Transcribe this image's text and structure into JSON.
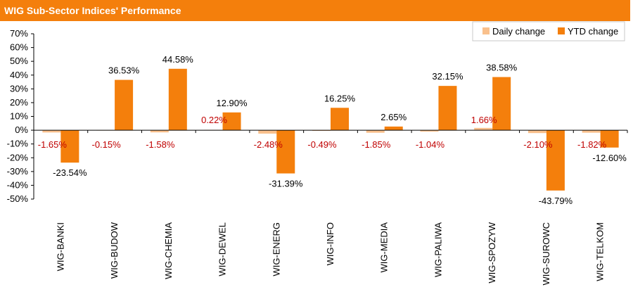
{
  "header": {
    "title": "WIG Sub-Sector Indices' Performance"
  },
  "colors": {
    "header_bg": "#f47f0c",
    "daily": "#f9c08c",
    "ytd": "#f47f0c",
    "daily_label": "#c00000",
    "axis": "#000000"
  },
  "chart_data": {
    "type": "bar",
    "title": "WIG Sub-Sector Indices' Performance",
    "categories": [
      "WIG-BANKI",
      "WIG-BUDOW",
      "WIG-CHEMIA",
      "WIG-DEWEL",
      "WIG-ENERG",
      "WIG-INFO",
      "WIG-MEDIA",
      "WIG-PALIWA",
      "WIG-SPOZYW",
      "WIG-SUROWC",
      "WIG-TELKOM"
    ],
    "series": [
      {
        "name": "Daily change",
        "values": [
          -1.65,
          -0.15,
          -1.58,
          0.22,
          -2.48,
          -0.49,
          -1.85,
          -1.04,
          1.66,
          -2.1,
          -1.82
        ],
        "labels": [
          "-1.65%",
          "-0.15%",
          "-1.58%",
          "0.22%",
          "-2.48%",
          "-0.49%",
          "-1.85%",
          "-1.04%",
          "1.66%",
          "-2.10%",
          "-1.82%"
        ]
      },
      {
        "name": "YTD change",
        "values": [
          -23.54,
          36.53,
          44.58,
          12.9,
          -31.39,
          16.25,
          2.65,
          32.15,
          38.58,
          -43.79,
          -12.6
        ],
        "labels": [
          "-23.54%",
          "36.53%",
          "44.58%",
          "12.90%",
          "-31.39%",
          "16.25%",
          "2.65%",
          "32.15%",
          "38.58%",
          "-43.79%",
          "-12.60%"
        ]
      }
    ],
    "ylim": [
      -50,
      70
    ],
    "yticks": [
      70,
      60,
      50,
      40,
      30,
      20,
      10,
      0,
      -10,
      -20,
      -30,
      -40,
      -50
    ],
    "ytick_labels": [
      "70%",
      "60%",
      "50%",
      "40%",
      "30%",
      "20%",
      "10%",
      "0%",
      "-10%",
      "-20%",
      "-30%",
      "-40%",
      "-50%"
    ],
    "legend_position": "top-right",
    "grid": false
  }
}
